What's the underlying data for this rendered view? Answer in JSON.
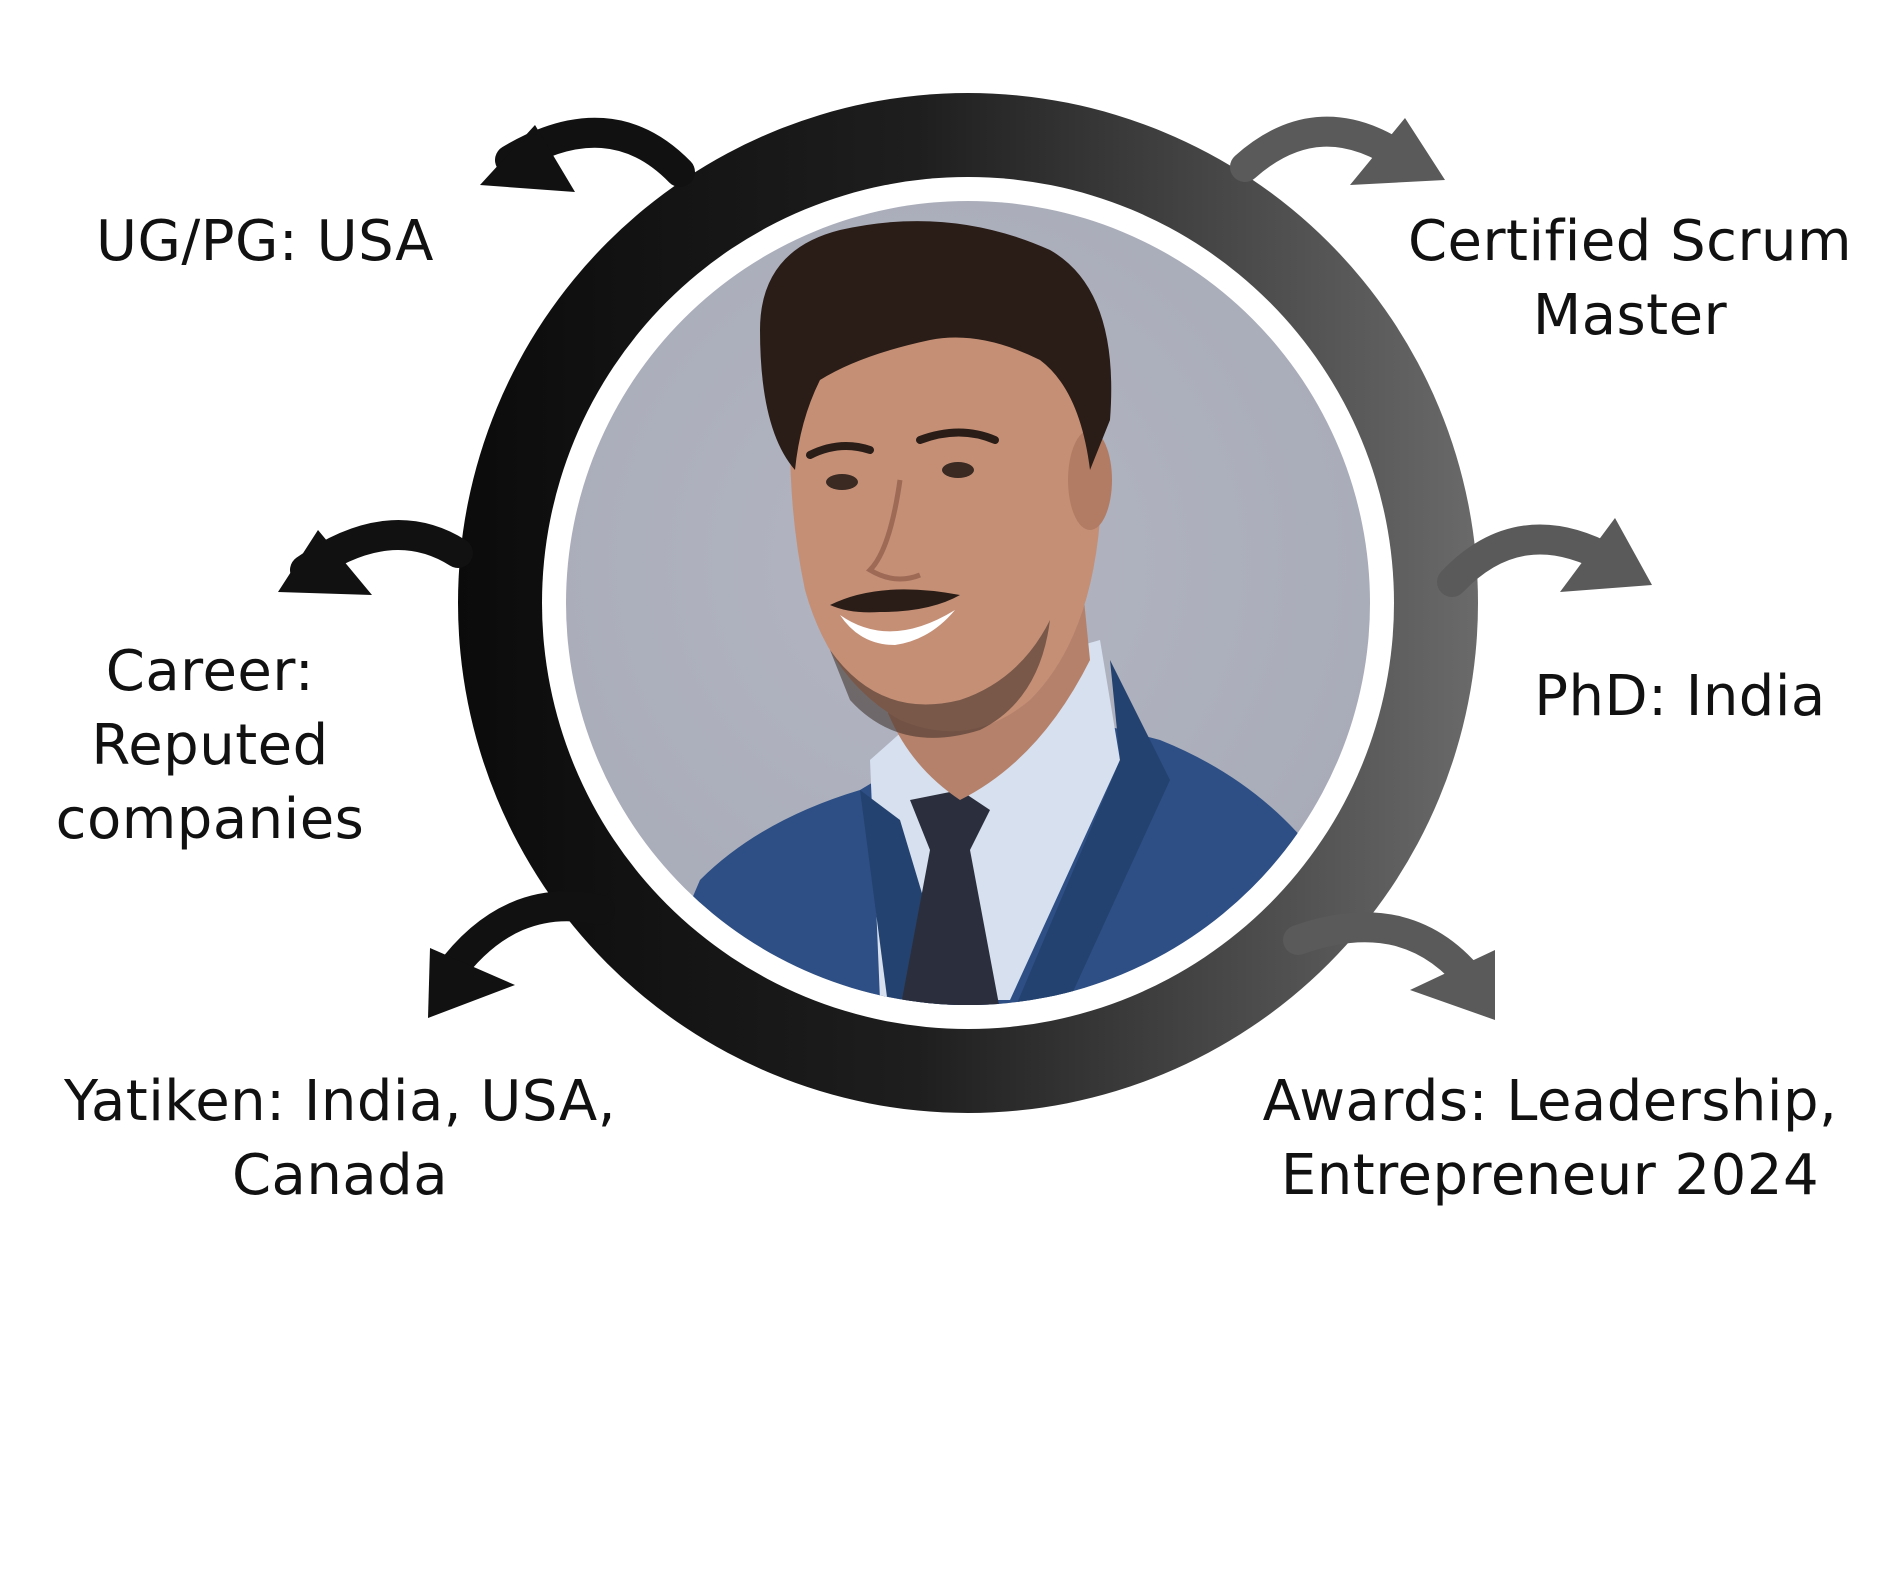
{
  "profile": {
    "portrait_icon": "smiling-man-in-suit-portrait",
    "ring_colors": {
      "left": "#0b0b0b",
      "right": "#6a6a6a"
    },
    "photo_background": "#a6a9b6",
    "suit_color": "#2d4f85",
    "shirt_color": "#d6e0ef",
    "tie_color": "#2b2f3d"
  },
  "arrows": {
    "left_color": "#111111",
    "right_color": "#5a5a5a"
  },
  "labels": {
    "ug_pg": {
      "lines": [
        "UG/PG: USA"
      ]
    },
    "career": {
      "lines": [
        "Career:",
        "Reputed",
        "companies"
      ]
    },
    "yatiken": {
      "lines": [
        "Yatiken: India, USA,",
        "Canada"
      ]
    },
    "scrum": {
      "lines": [
        "Certified Scrum",
        "Master"
      ]
    },
    "phd": {
      "lines": [
        "PhD: India"
      ]
    },
    "awards": {
      "lines": [
        "Awards: Leadership,",
        "Entrepreneur 2024"
      ]
    }
  }
}
